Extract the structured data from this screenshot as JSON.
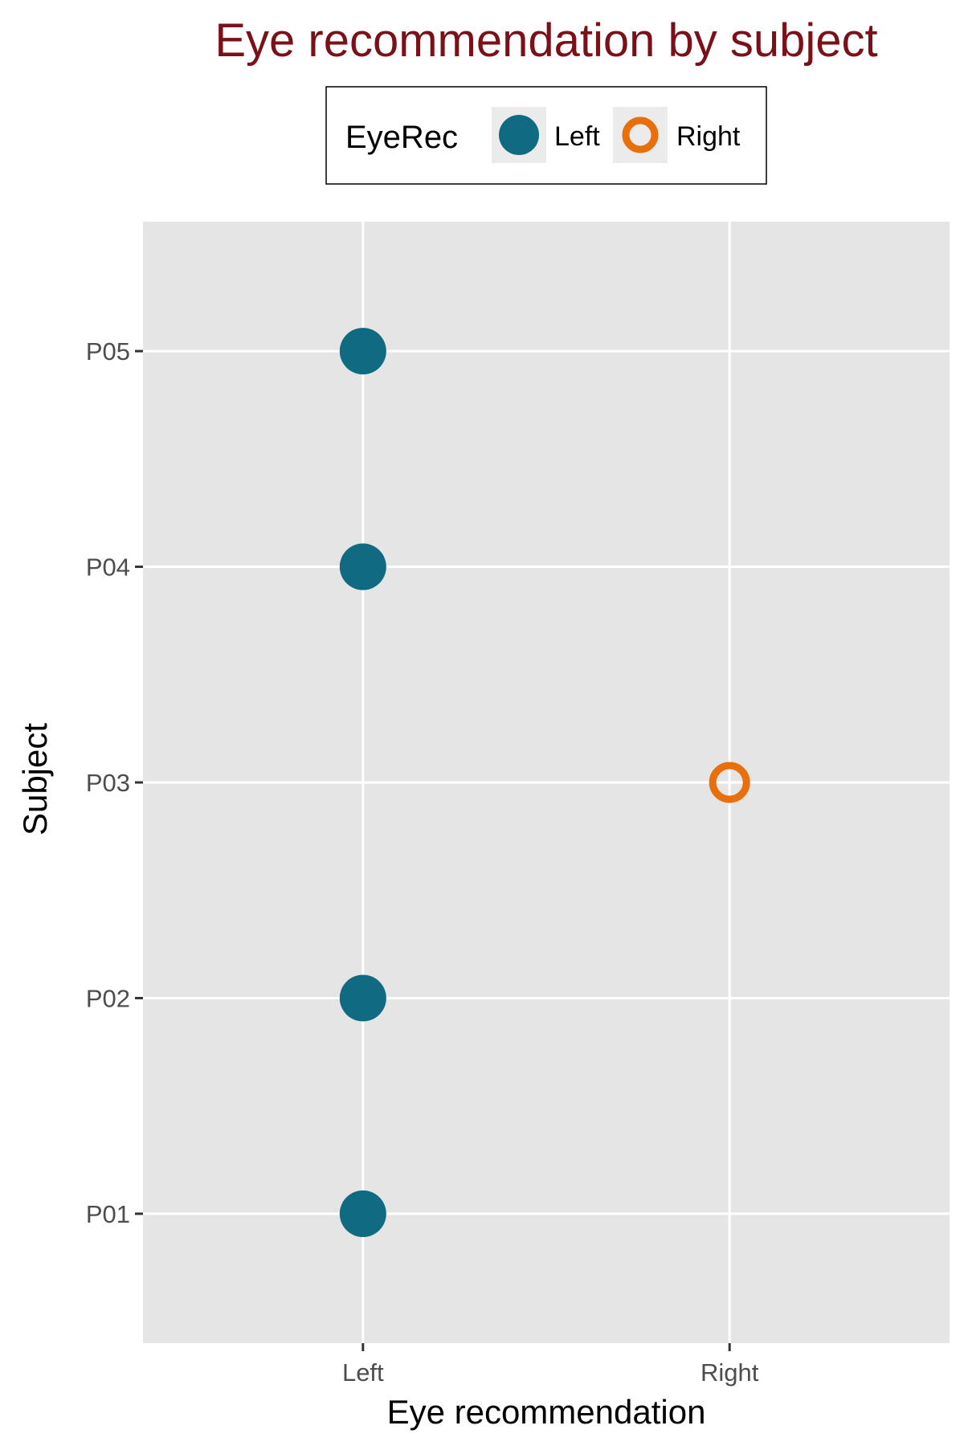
{
  "chart_data": {
    "type": "scatter",
    "title": "Eye recommendation by subject",
    "xlabel": "Eye recommendation",
    "ylabel": "Subject",
    "x_categories": [
      "Left",
      "Right"
    ],
    "y_categories": [
      "P01",
      "P02",
      "P03",
      "P04",
      "P05"
    ],
    "points": [
      {
        "subject": "P01",
        "eye": "Left"
      },
      {
        "subject": "P02",
        "eye": "Left"
      },
      {
        "subject": "P03",
        "eye": "Right"
      },
      {
        "subject": "P04",
        "eye": "Left"
      },
      {
        "subject": "P05",
        "eye": "Left"
      }
    ],
    "legend": {
      "title": "EyeRec",
      "placement": "top",
      "entries": [
        {
          "label": "Left",
          "marker": "filled-circle",
          "color": "#0f6a82"
        },
        {
          "label": "Right",
          "marker": "open-circle",
          "color": "#e8700c"
        }
      ]
    },
    "grid": true,
    "colors": {
      "title": "#7a1118",
      "panel_background": "#e5e5e5",
      "grid": "#ffffff",
      "Left": "#0f6a82",
      "Right": "#e8700c"
    }
  }
}
